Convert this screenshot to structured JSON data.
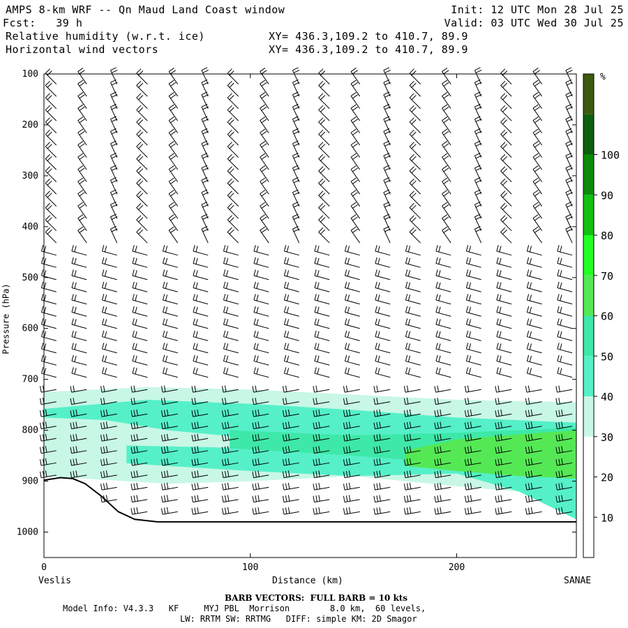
{
  "header": {
    "title": "AMPS 8-km WRF -- Qn Maud Land Coast window",
    "init": "Init: 12 UTC Mon 28 Jul 25",
    "fcst": "Fcst:   39 h",
    "valid": "Valid: 03 UTC Wed 30 Jul 25",
    "field1": "Relative humidity (w.r.t. ice)",
    "field2": "Horizontal wind vectors",
    "xy1": "XY= 436.3,109.2 to 410.7, 89.9",
    "xy2": "XY= 436.3,109.2 to 410.7, 89.9"
  },
  "chart_data": {
    "type": "heatmap",
    "title": "",
    "xlabel": "Distance (km)",
    "ylabel": "Pressure (hPa)",
    "xlim": [
      0,
      258
    ],
    "ylim": [
      1050,
      100
    ],
    "x_ticks": [
      0,
      100,
      200
    ],
    "y_ticks": [
      100,
      200,
      300,
      400,
      500,
      600,
      700,
      800,
      900,
      1000
    ],
    "endpoint_left": "Veslis",
    "endpoint_right": "SANAE",
    "colorbar": {
      "unit": "%",
      "levels": [
        10,
        20,
        30,
        40,
        50,
        60,
        70,
        80,
        90,
        100
      ],
      "colors": [
        "#ffffff",
        "#ffffff",
        "#ffffff",
        "#c8f7e6",
        "#55f0c8",
        "#3ee8a8",
        "#55e855",
        "#22ff22",
        "#11c011",
        "#0a8c0a",
        "#0c5f0c",
        "#3c5a0c"
      ]
    },
    "humidity_bands": [
      {
        "range": "30-40",
        "color": "#c8f7e6",
        "top": [
          [
            0,
            725
          ],
          [
            50,
            715
          ],
          [
            100,
            720
          ],
          [
            150,
            730
          ],
          [
            200,
            740
          ],
          [
            258,
            745
          ]
        ],
        "bottom": [
          [
            0,
            890
          ],
          [
            40,
            900
          ],
          [
            60,
            905
          ],
          [
            100,
            900
          ],
          [
            150,
            890
          ],
          [
            200,
            910
          ],
          [
            258,
            930
          ]
        ]
      },
      {
        "range": "40-50",
        "color": "#55f0c8",
        "top": [
          [
            0,
            758
          ],
          [
            50,
            740
          ],
          [
            100,
            748
          ],
          [
            150,
            760
          ],
          [
            200,
            775
          ],
          [
            258,
            785
          ]
        ],
        "bottom": [
          [
            0,
            775
          ],
          [
            30,
            780
          ],
          [
            60,
            800
          ],
          [
            100,
            815
          ],
          [
            150,
            830
          ],
          [
            200,
            840
          ],
          [
            258,
            850
          ]
        ]
      },
      {
        "range": "40-50",
        "color": "#55f0c8",
        "top": [
          [
            40,
            830
          ],
          [
            100,
            835
          ],
          [
            150,
            850
          ],
          [
            200,
            840
          ],
          [
            258,
            825
          ]
        ],
        "bottom": [
          [
            40,
            865
          ],
          [
            100,
            880
          ],
          [
            150,
            890
          ],
          [
            200,
            885
          ],
          [
            230,
            920
          ],
          [
            258,
            975
          ]
        ]
      },
      {
        "range": "50-60",
        "color": "#3ee8a8",
        "top": [
          [
            90,
            800
          ],
          [
            150,
            810
          ],
          [
            200,
            805
          ],
          [
            258,
            795
          ]
        ],
        "bottom": [
          [
            90,
            835
          ],
          [
            150,
            850
          ],
          [
            200,
            865
          ],
          [
            258,
            880
          ]
        ]
      },
      {
        "range": "60-70",
        "color": "#55e855",
        "top": [
          [
            175,
            840
          ],
          [
            200,
            818
          ],
          [
            230,
            808
          ],
          [
            258,
            800
          ]
        ],
        "bottom": [
          [
            175,
            870
          ],
          [
            200,
            880
          ],
          [
            230,
            890
          ],
          [
            258,
            895
          ]
        ]
      }
    ],
    "terrain_surface_hPa": [
      [
        0,
        898
      ],
      [
        8,
        893
      ],
      [
        14,
        895
      ],
      [
        20,
        905
      ],
      [
        28,
        930
      ],
      [
        36,
        960
      ],
      [
        44,
        975
      ],
      [
        55,
        980
      ],
      [
        258,
        980
      ]
    ],
    "wind_barbs_note": "BARB VECTORS:  FULL BARB = 10 kts"
  },
  "footer": {
    "barb_note": "BARB VECTORS:  FULL BARB = 10 kts",
    "model_info": "Model Info: V4.3.3   KF     MYJ PBL  Morrison        8.0 km,  60 levels,",
    "physics": "LW: RRTM SW: RRTMG   DIFF: simple KM: 2D Smagor"
  }
}
